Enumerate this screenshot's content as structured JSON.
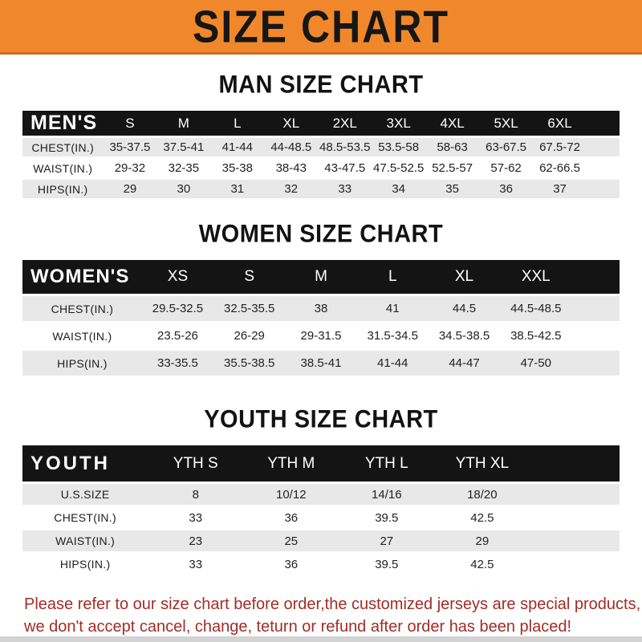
{
  "banner": {
    "title": "SIZE CHART",
    "bg_color": "#F0882B",
    "text_color": "#161616"
  },
  "sections": [
    {
      "id": "men",
      "title": "MAN SIZE CHART",
      "corner_label": "MEN'S",
      "columns": [
        "S",
        "M",
        "L",
        "XL",
        "2XL",
        "3XL",
        "4XL",
        "5XL",
        "6XL"
      ],
      "rows": [
        {
          "label": "CHEST(IN.)",
          "values": [
            "35-37.5",
            "37.5-41",
            "41-44",
            "44-48.5",
            "48.5-53.5",
            "53.5-58",
            "58-63",
            "63-67.5",
            "67.5-72"
          ]
        },
        {
          "label": "WAIST(IN.)",
          "values": [
            "29-32",
            "32-35",
            "35-38",
            "38-43",
            "43-47.5",
            "47.5-52.5",
            "52.5-57",
            "57-62",
            "62-66.5"
          ]
        },
        {
          "label": "HIPS(IN.)",
          "values": [
            "29",
            "30",
            "31",
            "32",
            "33",
            "34",
            "35",
            "36",
            "37"
          ]
        }
      ]
    },
    {
      "id": "women",
      "title": "WOMEN SIZE CHART",
      "corner_label": "WOMEN'S",
      "columns": [
        "XS",
        "S",
        "M",
        "L",
        "XL",
        "XXL"
      ],
      "rows": [
        {
          "label": "CHEST(IN.)",
          "values": [
            "29.5-32.5",
            "32.5-35.5",
            "38",
            "41",
            "44.5",
            "44.5-48.5"
          ]
        },
        {
          "label": "WAIST(IN.)",
          "values": [
            "23.5-26",
            "26-29",
            "29-31.5",
            "31.5-34.5",
            "34.5-38.5",
            "38.5-42.5"
          ]
        },
        {
          "label": "HIPS(IN.)",
          "values": [
            "33-35.5",
            "35.5-38.5",
            "38.5-41",
            "41-44",
            "44-47",
            "47-50"
          ]
        }
      ]
    },
    {
      "id": "youth",
      "title": "YOUTH SIZE CHART",
      "corner_label": "YOUTH",
      "columns": [
        "YTH S",
        "YTH M",
        "YTH L",
        "YTH XL"
      ],
      "rows": [
        {
          "label": "U.S.SIZE",
          "values": [
            "8",
            "10/12",
            "14/16",
            "18/20"
          ]
        },
        {
          "label": "CHEST(IN.)",
          "values": [
            "33",
            "36",
            "39.5",
            "42.5"
          ]
        },
        {
          "label": "WAIST(IN.)",
          "values": [
            "23",
            "25",
            "27",
            "29"
          ]
        },
        {
          "label": "HIPS(IN.)",
          "values": [
            "33",
            "36",
            "39.5",
            "42.5"
          ]
        }
      ]
    }
  ],
  "footer": {
    "lines": [
      "Please refer to our size chart before order,the customized jerseys are special products,",
      "we don't accept cancel, change, teturn or refund after order has been placed!"
    ],
    "text_color": "#A32C26"
  }
}
